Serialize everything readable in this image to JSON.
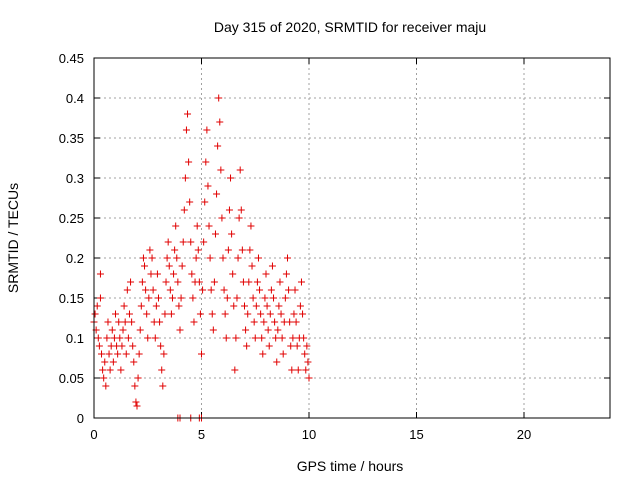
{
  "chart_data": {
    "type": "scatter",
    "title": "Day 315 of 2020, SRMTID for receiver maju",
    "xlabel": "GPS time / hours",
    "ylabel": "SRMTID / TECUs",
    "xlim": [
      0,
      24
    ],
    "ylim": [
      0,
      0.45
    ],
    "xticks": [
      0,
      5,
      10,
      15,
      20
    ],
    "xtick_labels": [
      "0",
      "5",
      "10",
      "15",
      "20"
    ],
    "yticks": [
      0,
      0.05,
      0.1,
      0.15,
      0.2,
      0.25,
      0.3,
      0.35,
      0.4,
      0.45
    ],
    "ytick_labels": [
      "0",
      "0.05",
      "0.1",
      "0.15",
      "0.2",
      "0.25",
      "0.3",
      "0.35",
      "0.4",
      "0.45"
    ],
    "grid": true,
    "marker": "plus",
    "color": "#e00000",
    "series": [
      {
        "name": "SRMTID",
        "points": [
          [
            0.0,
            0.12
          ],
          [
            0.05,
            0.13
          ],
          [
            0.1,
            0.11
          ],
          [
            0.15,
            0.14
          ],
          [
            0.2,
            0.1
          ],
          [
            0.25,
            0.09
          ],
          [
            0.3,
            0.15
          ],
          [
            0.3,
            0.18
          ],
          [
            0.35,
            0.08
          ],
          [
            0.4,
            0.06
          ],
          [
            0.45,
            0.05
          ],
          [
            0.5,
            0.07
          ],
          [
            0.55,
            0.04
          ],
          [
            0.6,
            0.1
          ],
          [
            0.65,
            0.12
          ],
          [
            0.7,
            0.08
          ],
          [
            0.75,
            0.06
          ],
          [
            0.8,
            0.09
          ],
          [
            0.85,
            0.11
          ],
          [
            0.9,
            0.07
          ],
          [
            0.95,
            0.1
          ],
          [
            1.0,
            0.13
          ],
          [
            1.05,
            0.09
          ],
          [
            1.1,
            0.08
          ],
          [
            1.15,
            0.12
          ],
          [
            1.2,
            0.1
          ],
          [
            1.25,
            0.06
          ],
          [
            1.3,
            0.09
          ],
          [
            1.35,
            0.11
          ],
          [
            1.4,
            0.14
          ],
          [
            1.45,
            0.12
          ],
          [
            1.5,
            0.08
          ],
          [
            1.55,
            0.16
          ],
          [
            1.6,
            0.1
          ],
          [
            1.65,
            0.13
          ],
          [
            1.7,
            0.17
          ],
          [
            1.75,
            0.12
          ],
          [
            1.8,
            0.09
          ],
          [
            1.85,
            0.07
          ],
          [
            1.9,
            0.04
          ],
          [
            1.95,
            0.02
          ],
          [
            2.0,
            0.015
          ],
          [
            2.05,
            0.05
          ],
          [
            2.1,
            0.08
          ],
          [
            2.15,
            0.11
          ],
          [
            2.2,
            0.14
          ],
          [
            2.25,
            0.17
          ],
          [
            2.3,
            0.2
          ],
          [
            2.35,
            0.19
          ],
          [
            2.4,
            0.16
          ],
          [
            2.45,
            0.13
          ],
          [
            2.5,
            0.1
          ],
          [
            2.55,
            0.15
          ],
          [
            2.6,
            0.21
          ],
          [
            2.65,
            0.18
          ],
          [
            2.7,
            0.2
          ],
          [
            2.75,
            0.16
          ],
          [
            2.8,
            0.12
          ],
          [
            2.85,
            0.1
          ],
          [
            2.9,
            0.14
          ],
          [
            2.95,
            0.18
          ],
          [
            3.0,
            0.15
          ],
          [
            3.05,
            0.12
          ],
          [
            3.1,
            0.09
          ],
          [
            3.15,
            0.06
          ],
          [
            3.2,
            0.04
          ],
          [
            3.25,
            0.08
          ],
          [
            3.3,
            0.13
          ],
          [
            3.35,
            0.17
          ],
          [
            3.4,
            0.2
          ],
          [
            3.45,
            0.22
          ],
          [
            3.5,
            0.19
          ],
          [
            3.55,
            0.16
          ],
          [
            3.6,
            0.13
          ],
          [
            3.65,
            0.15
          ],
          [
            3.7,
            0.18
          ],
          [
            3.75,
            0.21
          ],
          [
            3.8,
            0.24
          ],
          [
            3.85,
            0.2
          ],
          [
            3.9,
            0.17
          ],
          [
            3.95,
            0.14
          ],
          [
            4.0,
            0.11
          ],
          [
            4.05,
            0.15
          ],
          [
            4.1,
            0.19
          ],
          [
            4.15,
            0.22
          ],
          [
            4.2,
            0.26
          ],
          [
            4.25,
            0.3
          ],
          [
            4.3,
            0.36
          ],
          [
            4.35,
            0.38
          ],
          [
            4.4,
            0.32
          ],
          [
            4.45,
            0.27
          ],
          [
            4.5,
            0.22
          ],
          [
            4.55,
            0.18
          ],
          [
            4.6,
            0.15
          ],
          [
            4.65,
            0.12
          ],
          [
            4.7,
            0.17
          ],
          [
            4.75,
            0.2
          ],
          [
            4.8,
            0.24
          ],
          [
            4.85,
            0.21
          ],
          [
            4.9,
            0.17
          ],
          [
            4.95,
            0.13
          ],
          [
            5.0,
            0.08
          ],
          [
            5.05,
            0.16
          ],
          [
            5.1,
            0.22
          ],
          [
            5.15,
            0.27
          ],
          [
            5.2,
            0.32
          ],
          [
            5.25,
            0.36
          ],
          [
            5.3,
            0.29
          ],
          [
            5.35,
            0.24
          ],
          [
            5.4,
            0.2
          ],
          [
            5.45,
            0.16
          ],
          [
            5.5,
            0.13
          ],
          [
            5.55,
            0.11
          ],
          [
            5.6,
            0.17
          ],
          [
            5.65,
            0.23
          ],
          [
            5.7,
            0.28
          ],
          [
            5.75,
            0.34
          ],
          [
            5.8,
            0.4
          ],
          [
            5.85,
            0.37
          ],
          [
            5.9,
            0.31
          ],
          [
            5.95,
            0.25
          ],
          [
            6.0,
            0.2
          ],
          [
            6.05,
            0.16
          ],
          [
            6.1,
            0.13
          ],
          [
            6.15,
            0.1
          ],
          [
            6.2,
            0.15
          ],
          [
            6.25,
            0.21
          ],
          [
            6.3,
            0.26
          ],
          [
            6.35,
            0.3
          ],
          [
            6.4,
            0.23
          ],
          [
            6.45,
            0.18
          ],
          [
            6.5,
            0.14
          ],
          [
            6.55,
            0.06
          ],
          [
            6.6,
            0.1
          ],
          [
            6.65,
            0.15
          ],
          [
            6.7,
            0.2
          ],
          [
            6.75,
            0.25
          ],
          [
            6.8,
            0.31
          ],
          [
            6.85,
            0.26
          ],
          [
            6.9,
            0.21
          ],
          [
            6.95,
            0.17
          ],
          [
            7.0,
            0.14
          ],
          [
            7.05,
            0.11
          ],
          [
            7.1,
            0.09
          ],
          [
            7.15,
            0.13
          ],
          [
            7.2,
            0.17
          ],
          [
            7.25,
            0.21
          ],
          [
            7.3,
            0.24
          ],
          [
            7.35,
            0.19
          ],
          [
            7.4,
            0.15
          ],
          [
            7.45,
            0.12
          ],
          [
            7.5,
            0.1
          ],
          [
            7.55,
            0.14
          ],
          [
            7.6,
            0.17
          ],
          [
            7.65,
            0.2
          ],
          [
            7.7,
            0.16
          ],
          [
            7.75,
            0.13
          ],
          [
            7.8,
            0.1
          ],
          [
            7.85,
            0.08
          ],
          [
            7.9,
            0.12
          ],
          [
            7.95,
            0.15
          ],
          [
            8.0,
            0.18
          ],
          [
            8.05,
            0.14
          ],
          [
            8.1,
            0.11
          ],
          [
            8.15,
            0.09
          ],
          [
            8.2,
            0.13
          ],
          [
            8.25,
            0.16
          ],
          [
            8.3,
            0.19
          ],
          [
            8.35,
            0.15
          ],
          [
            8.4,
            0.12
          ],
          [
            8.45,
            0.1
          ],
          [
            8.5,
            0.07
          ],
          [
            8.55,
            0.11
          ],
          [
            8.6,
            0.14
          ],
          [
            8.65,
            0.17
          ],
          [
            8.7,
            0.13
          ],
          [
            8.75,
            0.1
          ],
          [
            8.8,
            0.08
          ],
          [
            8.85,
            0.12
          ],
          [
            8.9,
            0.15
          ],
          [
            8.95,
            0.18
          ],
          [
            9.0,
            0.2
          ],
          [
            9.05,
            0.16
          ],
          [
            9.1,
            0.12
          ],
          [
            9.15,
            0.09
          ],
          [
            9.2,
            0.06
          ],
          [
            9.25,
            0.1
          ],
          [
            9.3,
            0.13
          ],
          [
            9.35,
            0.16
          ],
          [
            9.4,
            0.12
          ],
          [
            9.45,
            0.09
          ],
          [
            9.5,
            0.06
          ],
          [
            9.55,
            0.1
          ],
          [
            9.6,
            0.14
          ],
          [
            9.65,
            0.17
          ],
          [
            9.7,
            0.13
          ],
          [
            9.75,
            0.1
          ],
          [
            9.8,
            0.08
          ],
          [
            9.85,
            0.06
          ],
          [
            9.9,
            0.09
          ],
          [
            9.95,
            0.07
          ],
          [
            10.0,
            0.05
          ],
          [
            3.9,
            0.0
          ],
          [
            4.0,
            0.0
          ],
          [
            4.5,
            0.0
          ],
          [
            4.9,
            0.0
          ],
          [
            5.0,
            0.0
          ]
        ]
      }
    ]
  }
}
